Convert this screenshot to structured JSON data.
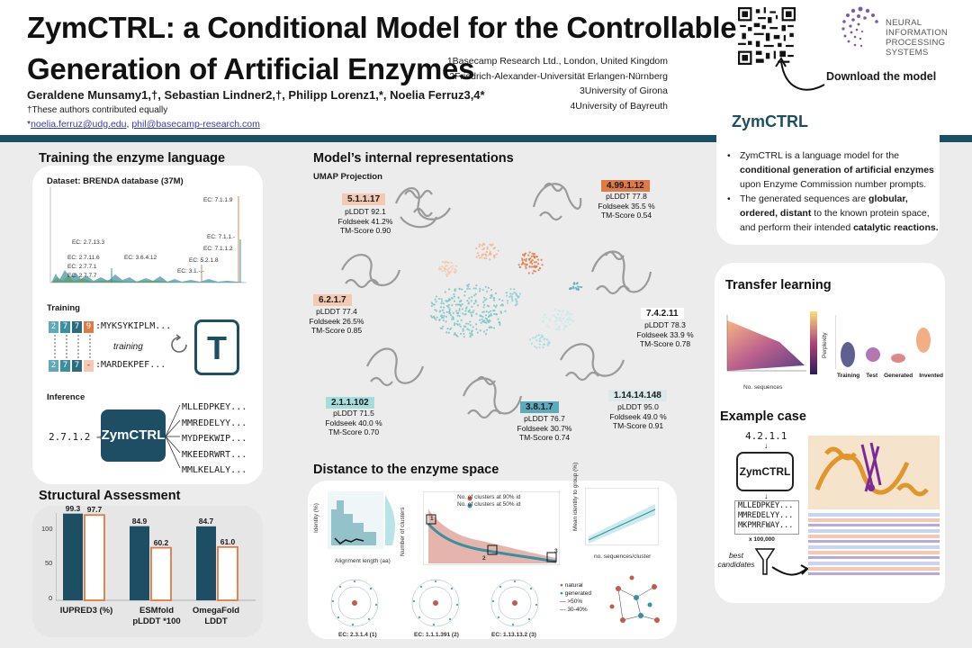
{
  "header": {
    "title_line1": "ZymCTRL: a Conditional Model for the Controllable",
    "title_line2": "Generation of Artificial Enzymes",
    "authors": "Geraldene Munsamy1,†, Sebastian Lindner2,†, Philipp Lorenz1,*, Noelia Ferruz3,4*",
    "equal_contribution": "†These authors contributed equally",
    "email_1": "noelia.ferruz@udg.edu",
    "email_separator": ", ",
    "email_2": "phil@basecamp-research.com",
    "email_prefix": "*",
    "affiliations": [
      "1Basecamp Research Ltd., London, United Kingdom",
      "2Friedrich-Alexander-Universität Erlangen-Nürnberg",
      "3University of Girona",
      "4University of Bayreuth"
    ],
    "neurips_line1": "NEURAL INFORMATION",
    "neurips_line2": "PROCESSING SYSTEMS",
    "download_label": "Download the model"
  },
  "training": {
    "title": "Training the enzyme language",
    "dataset_label": "Dataset: BRENDA database (37M)",
    "ec_labels": [
      "EC: 7.1.1.9",
      "EC: 2.7.13.3",
      "EC: 2.7.11.6",
      "EC: 2.7.7.1",
      "EC: 2.7.7.7",
      "EC: 3.6.4.12",
      "EC: 7.1.1.-",
      "EC: 7.1.1.2",
      "EC: 5.2.1.8",
      "EC: 3.1.-.-"
    ],
    "training_label": "Training",
    "training_word": "training",
    "seq1_ec": [
      "2",
      "7",
      "7",
      "9"
    ],
    "seq1_tail": ":MYKSYKIPLM...",
    "seq2_ec": [
      "2",
      "7",
      "7",
      "-"
    ],
    "seq2_tail": ":MARDEKPEF...",
    "t_letter": "T",
    "inference_label": "Inference",
    "inference_input": "2.7.1.2 →",
    "model_name": "ZymCTRL",
    "outputs": [
      "MLLEDPKEY...",
      "MMREDELYY...",
      "MYDPEKWIP...",
      "MKEEDRWRT...",
      "MMLKELALY..."
    ]
  },
  "structural": {
    "title": "Structural Assessment",
    "y_ticks": [
      "100",
      "50",
      "0"
    ],
    "categories": [
      "IUPRED3 (%)",
      "ESMfold\npLDDT *100",
      "OmegaFold\nLDDT"
    ]
  },
  "chart_data": {
    "type": "bar",
    "categories": [
      "IUPRED3 (%)",
      "ESMfold pLDDT *100",
      "OmegaFold LDDT"
    ],
    "series": [
      {
        "values": [
          99.3,
          84.9,
          84.7
        ]
      },
      {
        "values": [
          97.7,
          60.2,
          61.0
        ]
      }
    ],
    "value_labels": [
      [
        "99.3",
        "97.7"
      ],
      [
        "84.9",
        "60.2"
      ],
      [
        "84.7",
        "61.0"
      ]
    ],
    "ylim": [
      0,
      100
    ],
    "yticks": [
      0,
      50,
      100
    ],
    "colors": [
      "#1d4e63",
      "#e07a44"
    ]
  },
  "internal": {
    "title": "Model’s internal representations",
    "umap_label": "UMAP Projection",
    "clusters": [
      {
        "ec": "5.1.1.17",
        "stats": [
          "pLDDT  92.1",
          "Foldseek 41.2%",
          "TM-Score 0.90"
        ],
        "color": "#f3c9b3"
      },
      {
        "ec": "4.99.1.12",
        "stats": [
          "pLDDT  77.8",
          "Foldseek 35.5 %",
          "TM-Score 0.54"
        ],
        "color": "#e07a44"
      },
      {
        "ec": "6.2.1.7",
        "stats": [
          "pLDDT  77.4",
          "Foldseek 26.5%",
          "TM-Score 0.85"
        ],
        "color": "#f3c9b3"
      },
      {
        "ec": "7.4.2.11",
        "stats": [
          "pLDDT  78.3",
          "Foldseek 33.9 %",
          "TM-Score 0.78"
        ],
        "color": "#ffffff"
      },
      {
        "ec": "2.1.1.102",
        "stats": [
          "pLDDT  71.5",
          "Foldseek 40.0 %",
          "TM-Score 0.70"
        ],
        "color": "#a7dcdd"
      },
      {
        "ec": "3.8.1.7",
        "stats": [
          "pLDDT  76.7",
          "Foldseek 30.7%",
          "TM-Score 0.74"
        ],
        "color": "#5fa9bd"
      },
      {
        "ec": "1.14.14.148",
        "stats": [
          "pLDDT  95.0",
          "Foldseek 49.0 %",
          "TM-Score 0.91"
        ],
        "color": "#dbe9ea"
      }
    ]
  },
  "distance": {
    "title": "Distance to the enzyme space",
    "ylabel_identity": "Identity (%)",
    "xlabel_alignment": "Alignment length (aa)",
    "ylabel_clusters": "Number of clusters",
    "legend_90": "No. of clusters at 90% id",
    "legend_50": "No. of clusters at 50% id",
    "ylabel_mean": "Mean identity to group (%)",
    "xlabel_seq_cluster": "no. sequences/cluster",
    "box_numbers": [
      "1",
      "2",
      "3"
    ],
    "ec_circles": [
      "EC: 2.3.1.4 (1)",
      "EC: 1.1.1.391 (2)",
      "EC: 1.13.13.2 (3)"
    ],
    "net_legend": [
      "natural",
      "generated",
      ">50%",
      "30-40%"
    ]
  },
  "right": {
    "zym_title": "ZymCTRL",
    "bullet1_plain1": "ZymCTRL is a language model for the ",
    "bullet1_bold": "conditional generation of artificial enzymes",
    "bullet1_plain2": " upon Enzyme Commission number prompts.",
    "bullet2_plain1": "The generated sequences are ",
    "bullet2_bold1": "globular, ordered, distant",
    "bullet2_plain2": " to the known protein space, and perform their intended ",
    "bullet2_bold2": "catalytic reactions.",
    "transfer_title": "Transfer learning",
    "perplexity_label": "Perplexity",
    "no_sequences": "No. sequences",
    "violin_labels": [
      "Training",
      "Test",
      "Generated",
      "Invented"
    ],
    "example_title": "Example case",
    "example_ec": "4.2.1.1",
    "example_model": "ZymCTRL",
    "example_seqs": [
      "MLLEDPKEY...",
      "MMREDELYY...",
      "MKPMRFWAY..."
    ],
    "example_count": "x 100,000",
    "best_candidates": "best\ncandidates"
  }
}
